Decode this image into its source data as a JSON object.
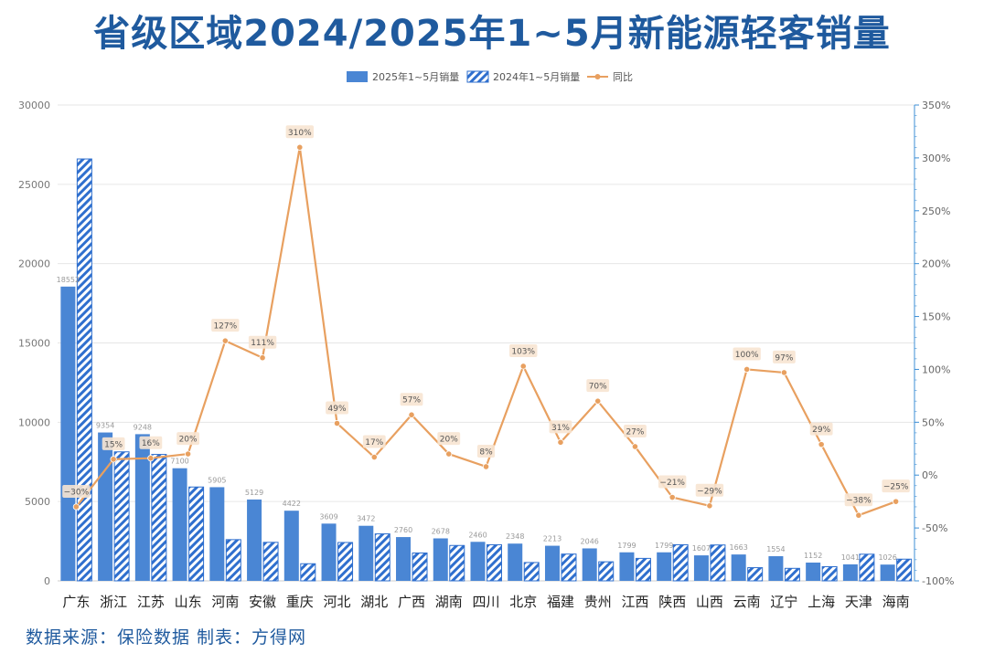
{
  "title": "省级区域2024/2025年1~5月新能源轻客销量",
  "source": "数据来源：保险数据 制表：方得网",
  "chart_data": {
    "type": "bar",
    "categories": [
      "广东",
      "浙江",
      "江苏",
      "山东",
      "河南",
      "安徽",
      "重庆",
      "河北",
      "湖北",
      "广西",
      "湖南",
      "四川",
      "北京",
      "福建",
      "贵州",
      "江西",
      "陕西",
      "山西",
      "云南",
      "辽宁",
      "上海",
      "天津",
      "海南"
    ],
    "series": [
      {
        "name": "2025年1~5月销量",
        "color": "#4a86d4",
        "values": [
          18552,
          9354,
          9248,
          7100,
          5905,
          5129,
          4422,
          3609,
          3472,
          2760,
          2678,
          2460,
          2348,
          2213,
          2046,
          1799,
          1799,
          1607,
          1663,
          1554,
          1152,
          1041,
          1026
        ],
        "labels": [
          "18552",
          "9354",
          "9248",
          "7100",
          "5905",
          "5129",
          "4422",
          "3609",
          "3472",
          "2760",
          "2678",
          "2460",
          "2348",
          "2213",
          "2046",
          "1799",
          "1799",
          "1607",
          "1663",
          "1554",
          "1152",
          "1041",
          "1026"
        ]
      },
      {
        "name": "2024年1~5月销量",
        "color": "#2f6fce",
        "pattern": "hatched",
        "values": [
          26600,
          8134,
          7972,
          5917,
          2599,
          2428,
          1079,
          2419,
          2962,
          1757,
          2231,
          2276,
          1156,
          1689,
          1202,
          1417,
          2277,
          2263,
          832,
          789,
          893,
          1680,
          1368
        ]
      },
      {
        "name": "同比",
        "color": "#e8a060",
        "axis": "right",
        "values": [
          -30,
          15,
          16,
          20,
          127,
          111,
          310,
          49,
          17,
          57,
          20,
          8,
          103,
          31,
          70,
          27,
          -21,
          -29,
          100,
          97,
          29,
          -38,
          -25
        ],
        "labels": [
          "−30%",
          "15%",
          "16%",
          "20%",
          "127%",
          "111%",
          "310%",
          "49%",
          "17%",
          "57%",
          "20%",
          "8%",
          "103%",
          "31%",
          "70%",
          "27%",
          "−21%",
          "−29%",
          "100%",
          "97%",
          "29%",
          "−38%",
          "−25%"
        ]
      }
    ],
    "y_left": {
      "min": 0,
      "max": 30000,
      "ticks": [
        "0",
        "5000",
        "10000",
        "15000",
        "20000",
        "25000",
        "30000"
      ]
    },
    "y_right": {
      "min": -100,
      "max": 350,
      "ticks": [
        "-100%",
        "-50%",
        "0%",
        "50%",
        "100%",
        "150%",
        "200%",
        "250%",
        "300%",
        "350%"
      ],
      "color": "#3d8fd6"
    },
    "grid": true,
    "legend": "top-center"
  }
}
